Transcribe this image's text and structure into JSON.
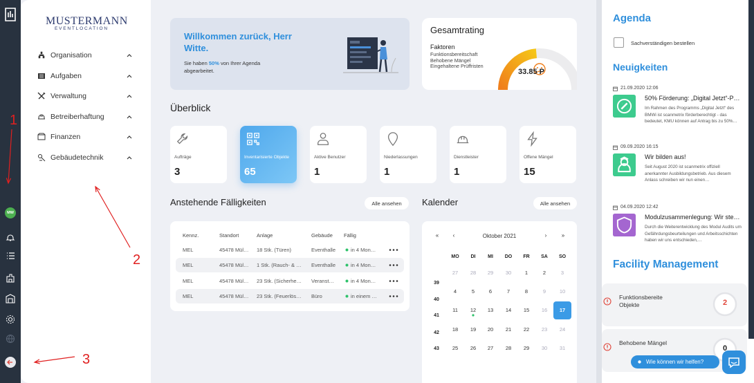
{
  "rail": {
    "avatar": "MW",
    "annotations": [
      "1",
      "2",
      "3"
    ]
  },
  "sidebar": {
    "logo": {
      "name": "MUSTERMANN",
      "tagline": "EVENTLOCATION"
    },
    "menu": [
      "Organisation",
      "Aufgaben",
      "Verwaltung",
      "Betreiberhaftung",
      "Finanzen",
      "Gebäudetechnik"
    ]
  },
  "welcome": {
    "title": "Willkommen zurück, Herr Witte.",
    "text_before": "Sie haben",
    "highlight": "50%",
    "text_after": "von Ihrer Agenda abgearbeitet."
  },
  "rating": {
    "title": "Gesamtrating",
    "factors_title": "Faktoren",
    "factors": [
      "Funktionsbereitschaft",
      "Behobene Mängel",
      "Eingehaltene Prüffristen"
    ],
    "score": "33.85 P"
  },
  "overview": {
    "title": "Überblick",
    "cards": [
      {
        "label": "Aufträge",
        "value": 3
      },
      {
        "label": "Inventarisierte Objekte",
        "value": 65
      },
      {
        "label": "Aktive Benutzer",
        "value": 1
      },
      {
        "label": "Niederlassungen",
        "value": 1
      },
      {
        "label": "Dienstleister",
        "value": 1
      },
      {
        "label": "Offene Mängel",
        "value": 15
      }
    ]
  },
  "due": {
    "title": "Anstehende Fälligkeiten",
    "button": "Alle ansehen",
    "columns": [
      "Kennz.",
      "Standort",
      "Anlage",
      "Gebäude",
      "Fällig"
    ],
    "rows": [
      [
        "MEL",
        "45478 Mül…",
        "18 Stk. (Türen)",
        "Eventhalle",
        "in 4 Mon…"
      ],
      [
        "MEL",
        "45478 Mül…",
        "1 Stk. (Rauch- & …",
        "Eventhalle",
        "in 4 Mon…"
      ],
      [
        "MEL",
        "45478 Mül…",
        "23 Stk. (Sicherhe…",
        "Veranst…",
        "in 4 Mon…"
      ],
      [
        "MEL",
        "45478 Mül…",
        "23 Stk. (Feuerlös…",
        "Büro",
        "in einem …"
      ]
    ]
  },
  "calendar": {
    "title": "Kalender",
    "button": "Alle ansehen",
    "nav": [
      "«",
      "‹",
      "›",
      "»"
    ],
    "month": "Oktober 2021",
    "weekdays": [
      "MO",
      "DI",
      "MI",
      "DO",
      "FR",
      "SA",
      "SO"
    ],
    "weeks": [
      39,
      40,
      41,
      42,
      43
    ],
    "days": [
      [
        27,
        28,
        29,
        30,
        1,
        2,
        3
      ],
      [
        4,
        5,
        6,
        7,
        8,
        9,
        10
      ],
      [
        11,
        12,
        13,
        14,
        15,
        16,
        17
      ],
      [
        18,
        19,
        20,
        21,
        22,
        23,
        24
      ],
      [
        25,
        26,
        27,
        28,
        29,
        30,
        31
      ]
    ]
  },
  "agenda": {
    "title": "Agenda",
    "tasks": [
      "Sachverständigen bestellen"
    ]
  },
  "news": {
    "title": "Neuigkeiten",
    "items": [
      {
        "date": "21.09.2020 12:06",
        "title": "50% Förderung: „Digital Jetzt“-P…",
        "text": "Im Rahmen des Programms „Digital Jetzt“ des BMWi ist scanmetrix förderberechtigt - das bedeutet, KMU können auf Antrag bis zu 50%…"
      },
      {
        "date": "09.09.2020 16:15",
        "title": "Wir bilden aus!",
        "text": "Seit August 2020 ist scanmetrix offiziell anerkannter Ausbildungsbetrieb. Aus diesem Anlass schreiben wir nun einen…"
      },
      {
        "date": "04.09.2020 12:42",
        "title": "Modulzusammenlegung: Wir ste…",
        "text": "Durch die Weiterentwicklung des Modul Audits um Gefährdungsbeurteilungen und Arbeitsschichten haben wir uns entschieden,…"
      }
    ]
  },
  "facility": {
    "title": "Facility Management",
    "items": [
      {
        "label": "Funktionsbereite Objekte",
        "value": 2
      },
      {
        "label": "Behobene Mängel",
        "value": 0
      }
    ]
  },
  "chat": {
    "label": "Wie können wir helfen?"
  }
}
